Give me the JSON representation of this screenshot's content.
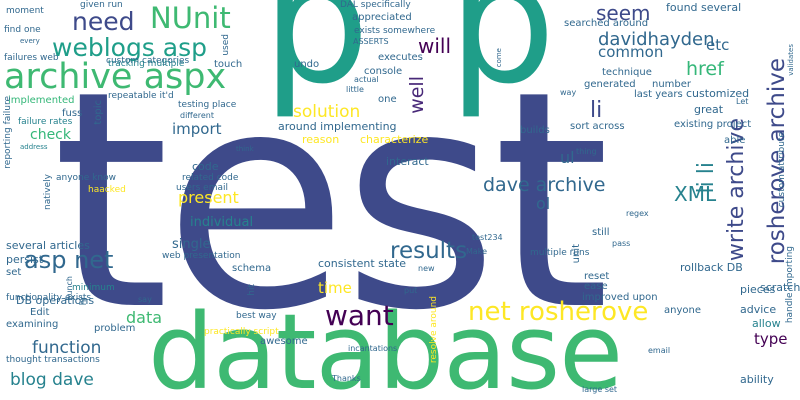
{
  "words": {
    "test": "test",
    "database": "database",
    "p1": "p",
    "p2": "p",
    "archive_aspx": "archive aspx",
    "weblogs_asp": "weblogs asp",
    "need": "need",
    "nunit": "NUnit",
    "net_rosherove": "net rosherove",
    "want": "want",
    "asp_net": "asp net",
    "results": "results",
    "write_archive": "write archive",
    "rosherove_archive": "rosherove archive",
    "dave_archive": "dave archive",
    "davidhayden": "davidhayden",
    "seem": "seem",
    "li1": "li",
    "li2": "li",
    "li_li": "li li",
    "href": "href",
    "will": "will",
    "well": "well",
    "xml": "XML",
    "solution": "solution",
    "function": "function",
    "blog_dave": "blog dave",
    "data": "data",
    "present": "present",
    "import": "import",
    "time": "time",
    "ol": "ol",
    "ul": "ul",
    "common": "common",
    "etc": "etc",
    "type": "type",
    "check": "check",
    "single": "single",
    "individual": "individual",
    "code": "code",
    "several_articles": "several articles",
    "db_operations": "DB operations",
    "persist": "persist",
    "set": "set",
    "interact": "interact",
    "reason": "reason",
    "characterize": "characterize",
    "around_implementing": "around implementing",
    "consistent_state": "consistent state",
    "rollback_db": "rollback DB",
    "scratch": "scratch",
    "advice": "advice",
    "allow": "allow",
    "ability": "ability",
    "pieces": "pieces",
    "great": "great",
    "customized": "customized",
    "found_several": "found several",
    "existing_project": "existing project",
    "technique": "technique",
    "last_years": "last years",
    "generated": "generated",
    "number": "number",
    "searched_around": "searched around",
    "appreciated": "appreciated",
    "executes": "executes",
    "console": "console",
    "undo": "undo",
    "touch": "touch",
    "one": "one",
    "builds": "builds",
    "sort_across": "sort across",
    "implemented": "implemented",
    "fuss": "fuss",
    "topic": "topic",
    "testing_place": "testing place",
    "repeatable_itd": "repeatable it'd",
    "different": "different",
    "related_code": "related code",
    "users_email": "users email",
    "web_presentation": "web presentation",
    "schema": "schema",
    "hit": "hit",
    "unit": "unit",
    "regex": "regex",
    "still": "still",
    "multiple_runs": "multiple runs",
    "reset": "reset",
    "ease": "ease",
    "improved_upon": "improved upon",
    "anyone": "anyone",
    "best_way": "best way",
    "practically_script": "practically script",
    "awesome": "awesome",
    "problem": "problem",
    "thought_transactions": "thought transactions",
    "examining": "examining",
    "edit": "Edit",
    "hr": "hr",
    "functionality_exists": "functionality exists",
    "minimum": "minimum",
    "bunch": "bunch",
    "resolve_around": "resolve around",
    "incantations": "incantations",
    "thanks": "Thanks",
    "email": "email",
    "put": "put",
    "say": "say",
    "large_set": "large set",
    "make": "Make",
    "test234": "test234",
    "new": "new",
    "pass": "pass",
    "thing": "thing",
    "actual": "actual",
    "little": "little",
    "way": "way",
    "come": "come",
    "let": "Let",
    "validates": "validates",
    "custom_attribute": "custom attribute",
    "handle_importing": "handle importing",
    "able": "able",
    "asserts": "ASSERTS",
    "exists_somewhere": "exists somewhere",
    "dal_specifically": "DAL specifically",
    "custom_categories": "custom categories",
    "tracking_multiple": "tracking multiple",
    "used": "used",
    "given_run": "given run",
    "moment": "moment",
    "find_one": "find one",
    "every": "every",
    "failures_web": "failures web",
    "failure_rates": "failure rates",
    "reporting_failure": "reporting failure",
    "address": "address",
    "natively": "natively",
    "anyone_know": "anyone know",
    "haacked": "haacked",
    "think": "think"
  }
}
